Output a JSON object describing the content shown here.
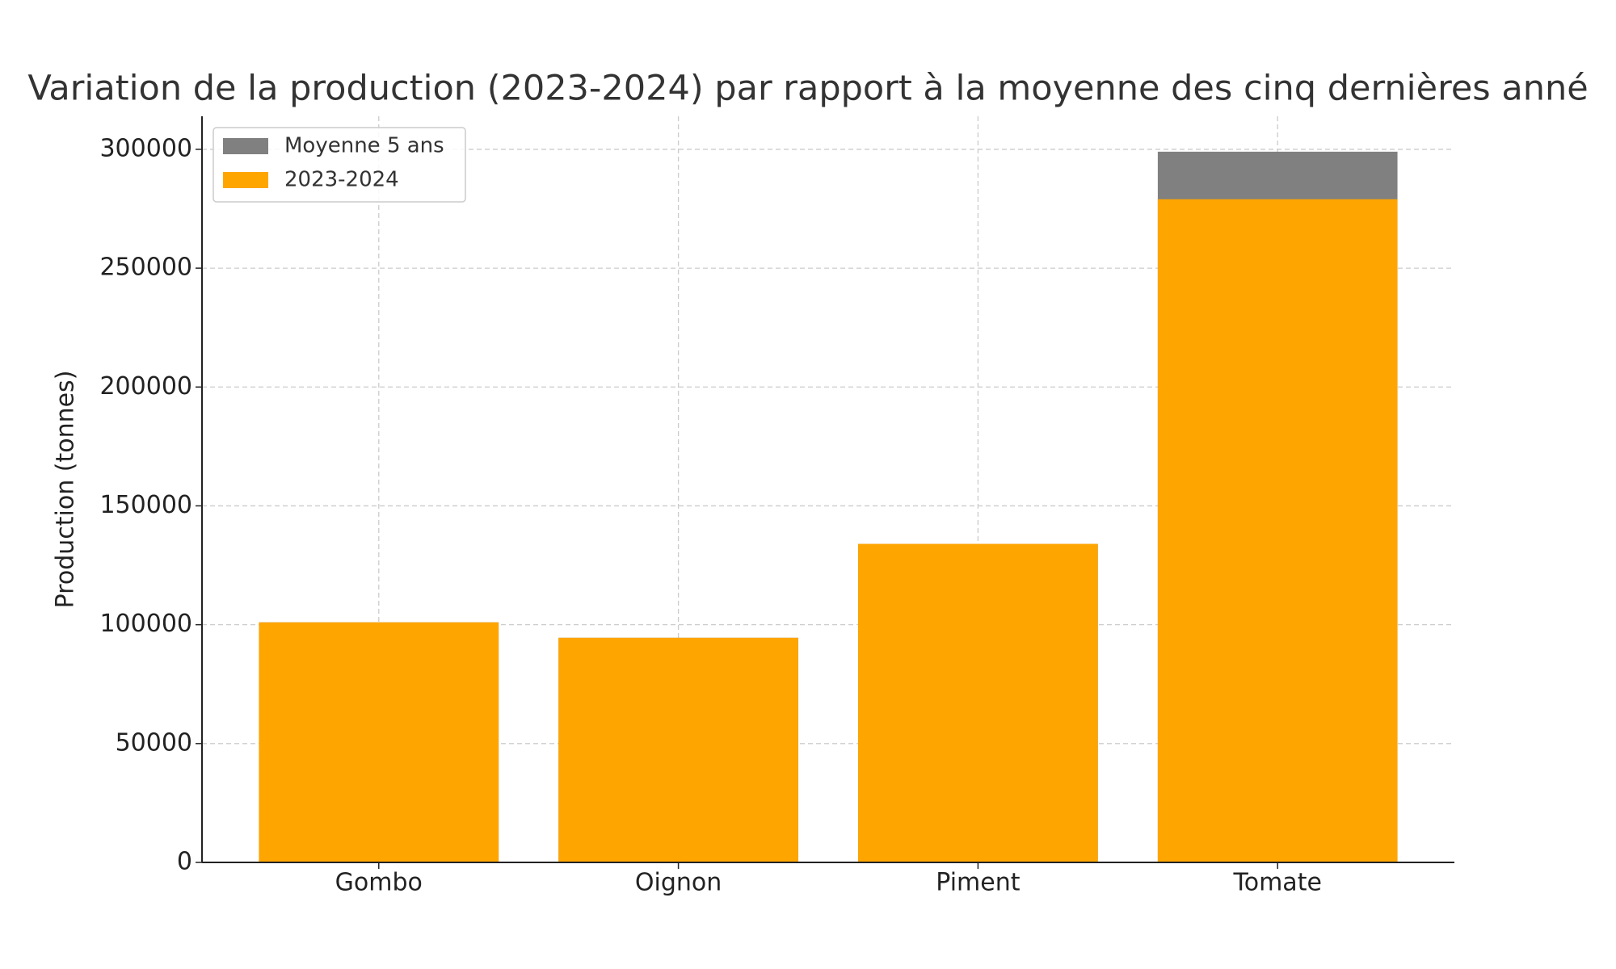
{
  "chart_data": {
    "type": "bar",
    "title": "Variation de la production (2023-2024) par rapport à la moyenne des cinq dernières anné",
    "y_label": "Production (tonnes)",
    "categories": [
      "Gombo",
      "Oignon",
      "Piment",
      "Tomate"
    ],
    "series": [
      {
        "name": "Moyenne 5 ans",
        "color": "#808080",
        "values": [
          101000,
          94500,
          134000,
          299000
        ]
      },
      {
        "name": "2023-2024",
        "color": "#ffa500",
        "values": [
          101000,
          94500,
          134000,
          279000
        ]
      }
    ],
    "ylim": [
      0,
      313900
    ],
    "yticks": [
      0,
      50000,
      100000,
      150000,
      200000,
      250000,
      300000
    ],
    "grid": true,
    "legend": "upper left"
  }
}
